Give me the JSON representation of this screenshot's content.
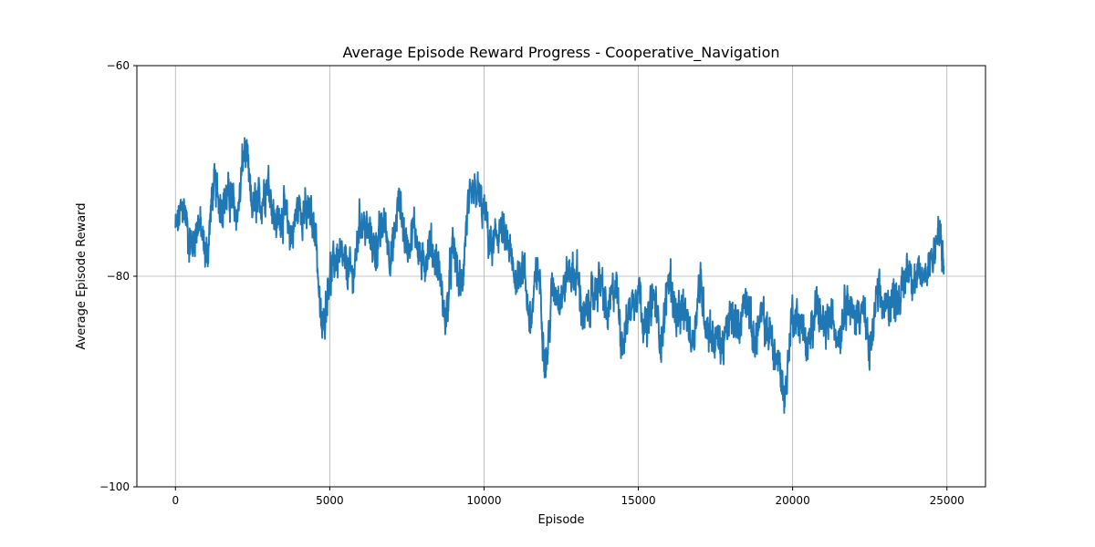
{
  "chart_data": {
    "type": "line",
    "title": "Average Episode Reward Progress - Cooperative_Navigation",
    "xlabel": "Episode",
    "ylabel": "Average Episode Reward",
    "xlim": [
      -1250,
      26250
    ],
    "ylim": [
      -100,
      -60
    ],
    "xticks": [
      0,
      5000,
      10000,
      15000,
      20000,
      25000
    ],
    "xtick_labels": [
      "0",
      "5000",
      "10000",
      "15000",
      "20000",
      "25000"
    ],
    "yticks": [
      -100,
      -80,
      -60
    ],
    "ytick_labels": [
      "−100",
      "−80",
      "−60"
    ],
    "grid": true,
    "series_color": "#1f77b4",
    "series": [
      {
        "x": [
          0,
          250,
          500,
          750,
          1000,
          1250,
          1500,
          1750,
          2000,
          2250,
          2500,
          2750,
          3000,
          3250,
          3500,
          3750,
          4000,
          4250,
          4500,
          4750,
          5000,
          5250,
          5500,
          5750,
          6000,
          6250,
          6500,
          6750,
          7000,
          7250,
          7500,
          7750,
          8000,
          8250,
          8500,
          8750,
          9000,
          9250,
          9500,
          9750,
          10000,
          10250,
          10500,
          10750,
          11000,
          11250,
          11500,
          11750,
          12000,
          12250,
          12500,
          12750,
          13000,
          13250,
          13500,
          13750,
          14000,
          14250,
          14500,
          14750,
          15000,
          15250,
          15500,
          15750,
          16000,
          16250,
          16500,
          16750,
          17000,
          17250,
          17500,
          17750,
          18000,
          18250,
          18500,
          18750,
          19000,
          19250,
          19500,
          19750,
          20000,
          20250,
          20500,
          20750,
          21000,
          21250,
          21500,
          21750,
          22000,
          22250,
          22500,
          22750,
          23000,
          23250,
          23500,
          23750,
          24000,
          24250,
          24500,
          24750,
          24900
        ],
        "y": [
          -75.5,
          -73.5,
          -77,
          -75,
          -78,
          -71.5,
          -73,
          -72.5,
          -74,
          -68,
          -73.5,
          -73,
          -71,
          -75,
          -74,
          -76,
          -73.5,
          -74,
          -75,
          -85,
          -80,
          -78,
          -79,
          -80,
          -74.5,
          -76,
          -77.5,
          -75,
          -78,
          -73,
          -77,
          -75.5,
          -79,
          -77,
          -79,
          -84,
          -77.5,
          -81,
          -73.5,
          -72,
          -74,
          -77.5,
          -75.5,
          -77,
          -80,
          -79,
          -84,
          -79.5,
          -88,
          -81,
          -82,
          -79.5,
          -80,
          -84,
          -82,
          -80.5,
          -83.5,
          -81,
          -86,
          -83,
          -81,
          -85,
          -82,
          -86,
          -80,
          -84,
          -83.5,
          -86,
          -81,
          -85,
          -86,
          -86.5,
          -84,
          -84.5,
          -82,
          -86,
          -84,
          -85.5,
          -88,
          -91,
          -83.5,
          -84.5,
          -87,
          -82.5,
          -85,
          -84,
          -85.5,
          -82,
          -84,
          -83,
          -87,
          -82,
          -83,
          -82,
          -82,
          -79,
          -80.5,
          -80,
          -78,
          -76,
          -79
        ]
      }
    ]
  }
}
